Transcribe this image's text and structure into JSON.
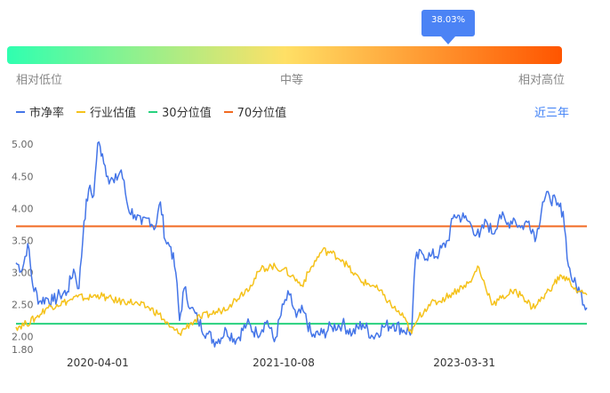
{
  "gauge": {
    "percent_label": "38.03%",
    "position_fraction": 0.795,
    "low_label": "相对低位",
    "mid_label": "中等",
    "high_label": "相对高位",
    "color_start": "#2fffb0",
    "color_mid": "#ffe066",
    "color_end": "#ff5500",
    "tip_color": "#4b83f5"
  },
  "legend": {
    "items": [
      {
        "label": "市净率",
        "color": "#4475e8"
      },
      {
        "label": "行业估值",
        "color": "#f5c21b"
      },
      {
        "label": "30分位值",
        "color": "#27d17e"
      },
      {
        "label": "70分位值",
        "color": "#f26a21"
      }
    ],
    "range_label": "近三年"
  },
  "chart_data": {
    "type": "line",
    "y_ticks": [
      "5.00",
      "4.50",
      "4.00",
      "3.50",
      "3.00",
      "2.50",
      "2.00",
      "1.80"
    ],
    "ylim": [
      1.8,
      5.1
    ],
    "x_tick_labels": [
      "2020-04-01",
      "2021-10-08",
      "2023-03-31"
    ],
    "xlim": [
      "2019-08-01",
      "2024-03-31"
    ],
    "series": [
      {
        "name": "市净率",
        "color": "#4475e8",
        "points": [
          [
            "2019-08-01",
            3.15
          ],
          [
            "2019-08-20",
            3.05
          ],
          [
            "2019-09-05",
            3.45
          ],
          [
            "2019-09-20",
            2.8
          ],
          [
            "2019-10-10",
            2.55
          ],
          [
            "2019-11-01",
            2.6
          ],
          [
            "2019-11-20",
            2.55
          ],
          [
            "2019-12-10",
            2.65
          ],
          [
            "2020-01-01",
            2.7
          ],
          [
            "2020-01-20",
            3.05
          ],
          [
            "2020-02-05",
            2.75
          ],
          [
            "2020-02-20",
            3.8
          ],
          [
            "2020-03-05",
            4.3
          ],
          [
            "2020-03-20",
            4.2
          ],
          [
            "2020-04-01",
            5.02
          ],
          [
            "2020-04-15",
            4.85
          ],
          [
            "2020-05-01",
            4.5
          ],
          [
            "2020-05-20",
            4.4
          ],
          [
            "2020-06-10",
            4.6
          ],
          [
            "2020-07-01",
            4.0
          ],
          [
            "2020-07-20",
            3.9
          ],
          [
            "2020-08-10",
            3.75
          ],
          [
            "2020-09-01",
            3.85
          ],
          [
            "2020-09-20",
            3.7
          ],
          [
            "2020-10-05",
            4.1
          ],
          [
            "2020-10-20",
            3.5
          ],
          [
            "2020-11-05",
            3.4
          ],
          [
            "2020-11-20",
            3.0
          ],
          [
            "2020-12-01",
            2.25
          ],
          [
            "2020-12-15",
            2.75
          ],
          [
            "2021-01-05",
            2.45
          ],
          [
            "2021-01-25",
            2.25
          ],
          [
            "2021-02-20",
            2.05
          ],
          [
            "2021-03-20",
            1.92
          ],
          [
            "2021-04-20",
            2.1
          ],
          [
            "2021-05-20",
            1.95
          ],
          [
            "2021-06-20",
            2.2
          ],
          [
            "2021-07-20",
            2.05
          ],
          [
            "2021-08-20",
            2.25
          ],
          [
            "2021-09-10",
            1.92
          ],
          [
            "2021-10-08",
            2.5
          ],
          [
            "2021-10-25",
            2.65
          ],
          [
            "2021-11-15",
            2.3
          ],
          [
            "2021-12-05",
            2.4
          ],
          [
            "2022-01-01",
            2.0
          ],
          [
            "2022-02-01",
            2.05
          ],
          [
            "2022-03-01",
            2.15
          ],
          [
            "2022-04-01",
            2.2
          ],
          [
            "2022-05-01",
            2.05
          ],
          [
            "2022-06-01",
            2.2
          ],
          [
            "2022-07-01",
            2.0
          ],
          [
            "2022-08-01",
            2.15
          ],
          [
            "2022-09-01",
            2.2
          ],
          [
            "2022-10-01",
            2.1
          ],
          [
            "2022-10-25",
            2.08
          ],
          [
            "2022-11-05",
            3.2
          ],
          [
            "2022-11-25",
            3.3
          ],
          [
            "2022-12-20",
            3.25
          ],
          [
            "2023-01-15",
            3.3
          ],
          [
            "2023-02-10",
            3.5
          ],
          [
            "2023-03-01",
            3.9
          ],
          [
            "2023-03-31",
            3.85
          ],
          [
            "2023-04-20",
            3.75
          ],
          [
            "2023-05-15",
            3.55
          ],
          [
            "2023-06-05",
            3.8
          ],
          [
            "2023-06-25",
            3.6
          ],
          [
            "2023-07-15",
            3.9
          ],
          [
            "2023-08-05",
            3.75
          ],
          [
            "2023-08-25",
            3.85
          ],
          [
            "2023-09-15",
            3.7
          ],
          [
            "2023-10-10",
            3.8
          ],
          [
            "2023-11-01",
            3.55
          ],
          [
            "2023-11-20",
            4.1
          ],
          [
            "2023-12-10",
            4.2
          ],
          [
            "2024-01-01",
            4.05
          ],
          [
            "2024-01-20",
            3.95
          ],
          [
            "2024-02-05",
            3.1
          ],
          [
            "2024-02-20",
            2.85
          ],
          [
            "2024-03-10",
            2.7
          ],
          [
            "2024-03-31",
            2.45
          ]
        ]
      },
      {
        "name": "行业估值",
        "color": "#f5c21b",
        "points": [
          [
            "2019-08-01",
            2.15
          ],
          [
            "2019-09-01",
            2.2
          ],
          [
            "2019-10-01",
            2.3
          ],
          [
            "2019-11-01",
            2.45
          ],
          [
            "2019-12-01",
            2.5
          ],
          [
            "2020-01-01",
            2.55
          ],
          [
            "2020-02-01",
            2.62
          ],
          [
            "2020-03-01",
            2.6
          ],
          [
            "2020-04-01",
            2.65
          ],
          [
            "2020-05-01",
            2.6
          ],
          [
            "2020-06-01",
            2.55
          ],
          [
            "2020-07-01",
            2.55
          ],
          [
            "2020-08-01",
            2.5
          ],
          [
            "2020-09-01",
            2.45
          ],
          [
            "2020-10-01",
            2.35
          ],
          [
            "2020-11-01",
            2.15
          ],
          [
            "2020-12-01",
            2.05
          ],
          [
            "2021-01-01",
            2.2
          ],
          [
            "2021-02-01",
            2.3
          ],
          [
            "2021-03-01",
            2.35
          ],
          [
            "2021-04-01",
            2.4
          ],
          [
            "2021-05-01",
            2.5
          ],
          [
            "2021-06-01",
            2.65
          ],
          [
            "2021-07-01",
            2.8
          ],
          [
            "2021-08-01",
            3.05
          ],
          [
            "2021-09-01",
            3.1
          ],
          [
            "2021-10-08",
            3.05
          ],
          [
            "2021-11-01",
            2.95
          ],
          [
            "2021-12-01",
            2.8
          ],
          [
            "2022-01-01",
            3.1
          ],
          [
            "2022-02-01",
            3.35
          ],
          [
            "2022-03-01",
            3.3
          ],
          [
            "2022-04-01",
            3.2
          ],
          [
            "2022-05-01",
            3.0
          ],
          [
            "2022-06-01",
            2.85
          ],
          [
            "2022-07-01",
            2.8
          ],
          [
            "2022-08-01",
            2.65
          ],
          [
            "2022-09-01",
            2.45
          ],
          [
            "2022-10-01",
            2.3
          ],
          [
            "2022-10-25",
            2.05
          ],
          [
            "2022-11-15",
            2.3
          ],
          [
            "2022-12-15",
            2.5
          ],
          [
            "2023-01-15",
            2.55
          ],
          [
            "2023-02-15",
            2.65
          ],
          [
            "2023-03-31",
            2.8
          ],
          [
            "2023-04-20",
            2.85
          ],
          [
            "2023-05-10",
            3.1
          ],
          [
            "2023-06-01",
            2.8
          ],
          [
            "2023-06-25",
            2.5
          ],
          [
            "2023-07-20",
            2.6
          ],
          [
            "2023-08-20",
            2.7
          ],
          [
            "2023-09-20",
            2.65
          ],
          [
            "2023-10-20",
            2.45
          ],
          [
            "2023-11-20",
            2.6
          ],
          [
            "2023-12-20",
            2.8
          ],
          [
            "2024-01-15",
            2.95
          ],
          [
            "2024-02-10",
            2.85
          ],
          [
            "2024-03-05",
            2.7
          ],
          [
            "2024-03-31",
            2.65
          ]
        ]
      }
    ],
    "reference_lines": [
      {
        "name": "30分位值",
        "color": "#27d17e",
        "value": 2.2
      },
      {
        "name": "70分位值",
        "color": "#f26a21",
        "value": 3.72
      }
    ],
    "grid": false,
    "legend_position": "top-left"
  }
}
